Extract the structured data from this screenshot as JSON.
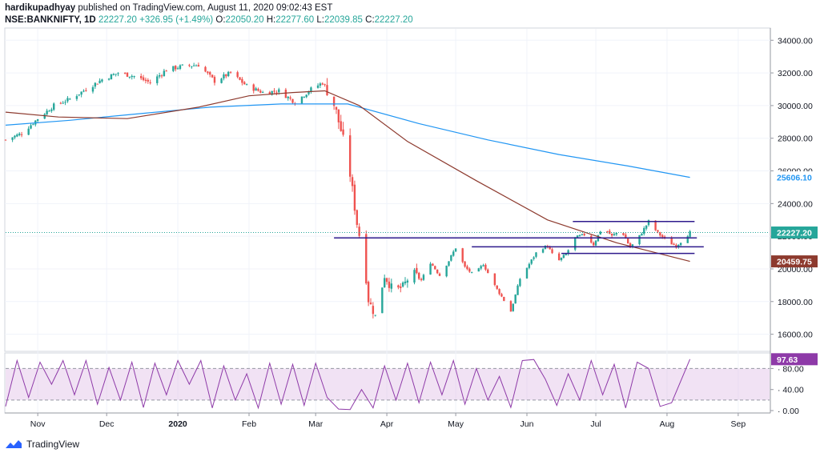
{
  "header": {
    "publisher": "hardikupadhyay",
    "published_text": "published on TradingView.com, August 11, 2020 09:02:43 EST",
    "symbol": "NSE:BANKNIFTY, 1D",
    "last": "22227.20",
    "change": "+326.95 (+1.49%)",
    "o_label": "O:",
    "o": "22050.20",
    "h_label": "H:",
    "h": "22277.60",
    "l_label": "L:",
    "l": "22039.85",
    "c_label": "C:",
    "c": "22227.20"
  },
  "footer": {
    "brand": "TradingView"
  },
  "colors": {
    "up": "#26a69a",
    "down": "#ef5350",
    "ma_fast": "#8d3a2e",
    "ma_slow": "#2196f3",
    "level_lines": "#2e1a8c",
    "oscillator": "#8e3aa8",
    "last_price_badge": "#2962ff"
  },
  "badges": {
    "ma_slow": "25606.10",
    "last_price": "22227.20",
    "ma_fast": "20459.75",
    "oscillator": "97.63"
  },
  "chart_data": [
    {
      "type": "candlestick",
      "title": "",
      "x_tick_labels": [
        "Nov",
        "Dec",
        "2020",
        "Feb",
        "Mar",
        "Apr",
        "May",
        "Jun",
        "Jul",
        "Aug",
        "Sep"
      ],
      "y_tick_labels": [
        "16000.00",
        "18000.00",
        "20000.00",
        "22000.00",
        "24000.00",
        "26000.00",
        "28000.00",
        "30000.00",
        "32000.00",
        "34000.00"
      ],
      "ylim": [
        15000,
        34700
      ],
      "close_path": [
        [
          "2019-10-18",
          27900
        ],
        [
          "2019-10-25",
          28300
        ],
        [
          "2019-11-01",
          29200
        ],
        [
          "2019-11-08",
          30000
        ],
        [
          "2019-11-15",
          30400
        ],
        [
          "2019-11-22",
          31000
        ],
        [
          "2019-11-29",
          31600
        ],
        [
          "2019-12-06",
          32000
        ],
        [
          "2019-12-13",
          31800
        ],
        [
          "2019-12-20",
          31400
        ],
        [
          "2019-12-27",
          32200
        ],
        [
          "2020-01-03",
          32400
        ],
        [
          "2020-01-10",
          32500
        ],
        [
          "2020-01-17",
          31500
        ],
        [
          "2020-01-24",
          32000
        ],
        [
          "2020-01-31",
          31200
        ],
        [
          "2020-02-07",
          30800
        ],
        [
          "2020-02-14",
          30900
        ],
        [
          "2020-02-21",
          30200
        ],
        [
          "2020-02-28",
          31000
        ],
        [
          "2020-03-04",
          31400
        ],
        [
          "2020-03-08",
          30600
        ],
        [
          "2020-03-12",
          28500
        ],
        [
          "2020-03-16",
          25800
        ],
        [
          "2020-03-19",
          22800
        ],
        [
          "2020-03-22",
          20700
        ],
        [
          "2020-03-24",
          18100
        ],
        [
          "2020-03-27",
          17100
        ],
        [
          "2020-03-31",
          19600
        ],
        [
          "2020-04-04",
          18600
        ],
        [
          "2020-04-08",
          18900
        ],
        [
          "2020-04-12",
          19800
        ],
        [
          "2020-04-16",
          19300
        ],
        [
          "2020-04-20",
          20400
        ],
        [
          "2020-04-24",
          19600
        ],
        [
          "2020-04-28",
          20500
        ],
        [
          "2020-05-01",
          21300
        ],
        [
          "2020-05-05",
          20100
        ],
        [
          "2020-05-09",
          19600
        ],
        [
          "2020-05-13",
          20300
        ],
        [
          "2020-05-17",
          19200
        ],
        [
          "2020-05-21",
          18300
        ],
        [
          "2020-05-25",
          17400
        ],
        [
          "2020-05-29",
          19400
        ],
        [
          "2020-06-02",
          20300
        ],
        [
          "2020-06-06",
          21200
        ],
        [
          "2020-06-10",
          21400
        ],
        [
          "2020-06-14",
          20400
        ],
        [
          "2020-06-18",
          20900
        ],
        [
          "2020-06-22",
          21900
        ],
        [
          "2020-06-26",
          22100
        ],
        [
          "2020-06-30",
          21500
        ],
        [
          "2020-07-04",
          22600
        ],
        [
          "2020-07-08",
          22000
        ],
        [
          "2020-07-12",
          22400
        ],
        [
          "2020-07-16",
          21300
        ],
        [
          "2020-07-20",
          22000
        ],
        [
          "2020-07-24",
          22900
        ],
        [
          "2020-07-28",
          22200
        ],
        [
          "2020-08-01",
          21700
        ],
        [
          "2020-08-05",
          21400
        ],
        [
          "2020-08-11",
          22227
        ]
      ],
      "ma_fast_path": [
        [
          "2019-10-18",
          29600
        ],
        [
          "2019-11-10",
          29300
        ],
        [
          "2019-12-10",
          29200
        ],
        [
          "2020-01-10",
          29900
        ],
        [
          "2020-02-01",
          30600
        ],
        [
          "2020-02-20",
          30800
        ],
        [
          "2020-03-05",
          30900
        ],
        [
          "2020-03-20",
          30000
        ],
        [
          "2020-04-10",
          27800
        ],
        [
          "2020-05-10",
          25400
        ],
        [
          "2020-06-10",
          23000
        ],
        [
          "2020-07-10",
          21600
        ],
        [
          "2020-08-11",
          20459.75
        ]
      ],
      "ma_slow_path": [
        [
          "2019-10-18",
          28800
        ],
        [
          "2019-11-15",
          29100
        ],
        [
          "2019-12-15",
          29500
        ],
        [
          "2020-01-15",
          29900
        ],
        [
          "2020-02-15",
          30100
        ],
        [
          "2020-03-15",
          30100
        ],
        [
          "2020-04-15",
          28900
        ],
        [
          "2020-05-15",
          27900
        ],
        [
          "2020-06-15",
          27000
        ],
        [
          "2020-07-15",
          26300
        ],
        [
          "2020-08-11",
          25606.1
        ]
      ],
      "horizontal_levels": [
        {
          "from": "2020-06-21",
          "to": "2020-08-13",
          "y": 22900
        },
        {
          "from": "2020-03-09",
          "to": "2020-08-14",
          "y": 21900
        },
        {
          "from": "2020-05-08",
          "to": "2020-08-17",
          "y": 21350
        },
        {
          "from": "2020-06-16",
          "to": "2020-08-13",
          "y": 20950
        }
      ],
      "last_price": 22227.2
    },
    {
      "type": "line",
      "title": "",
      "y_tick_labels": [
        "0.00",
        "40.00",
        "80.00"
      ],
      "ylim": [
        -3,
        108
      ],
      "band": [
        20,
        80
      ],
      "series_path": [
        [
          "2019-10-18",
          8
        ],
        [
          "2019-10-23",
          95
        ],
        [
          "2019-10-28",
          25
        ],
        [
          "2019-11-02",
          92
        ],
        [
          "2019-11-07",
          50
        ],
        [
          "2019-11-12",
          95
        ],
        [
          "2019-11-17",
          30
        ],
        [
          "2019-11-22",
          95
        ],
        [
          "2019-11-27",
          12
        ],
        [
          "2019-12-02",
          82
        ],
        [
          "2019-12-07",
          20
        ],
        [
          "2019-12-12",
          92
        ],
        [
          "2019-12-17",
          6
        ],
        [
          "2019-12-22",
          90
        ],
        [
          "2019-12-27",
          30
        ],
        [
          "2020-01-01",
          95
        ],
        [
          "2020-01-06",
          50
        ],
        [
          "2020-01-11",
          95
        ],
        [
          "2020-01-16",
          5
        ],
        [
          "2020-01-21",
          85
        ],
        [
          "2020-01-26",
          20
        ],
        [
          "2020-01-31",
          70
        ],
        [
          "2020-02-05",
          5
        ],
        [
          "2020-02-10",
          90
        ],
        [
          "2020-02-15",
          12
        ],
        [
          "2020-02-20",
          88
        ],
        [
          "2020-02-25",
          10
        ],
        [
          "2020-03-01",
          90
        ],
        [
          "2020-03-06",
          25
        ],
        [
          "2020-03-11",
          3
        ],
        [
          "2020-03-16",
          2
        ],
        [
          "2020-03-21",
          40
        ],
        [
          "2020-03-26",
          5
        ],
        [
          "2020-03-31",
          85
        ],
        [
          "2020-04-05",
          20
        ],
        [
          "2020-04-10",
          90
        ],
        [
          "2020-04-15",
          15
        ],
        [
          "2020-04-20",
          92
        ],
        [
          "2020-04-25",
          30
        ],
        [
          "2020-04-30",
          95
        ],
        [
          "2020-05-05",
          12
        ],
        [
          "2020-05-10",
          80
        ],
        [
          "2020-05-15",
          20
        ],
        [
          "2020-05-20",
          65
        ],
        [
          "2020-05-25",
          6
        ],
        [
          "2020-05-30",
          95
        ],
        [
          "2020-06-04",
          97
        ],
        [
          "2020-06-09",
          60
        ],
        [
          "2020-06-14",
          10
        ],
        [
          "2020-06-19",
          70
        ],
        [
          "2020-06-24",
          20
        ],
        [
          "2020-06-29",
          95
        ],
        [
          "2020-07-04",
          30
        ],
        [
          "2020-07-09",
          88
        ],
        [
          "2020-07-14",
          5
        ],
        [
          "2020-07-19",
          92
        ],
        [
          "2020-07-24",
          80
        ],
        [
          "2020-07-29",
          8
        ],
        [
          "2020-08-03",
          15
        ],
        [
          "2020-08-11",
          97.63
        ]
      ]
    }
  ]
}
